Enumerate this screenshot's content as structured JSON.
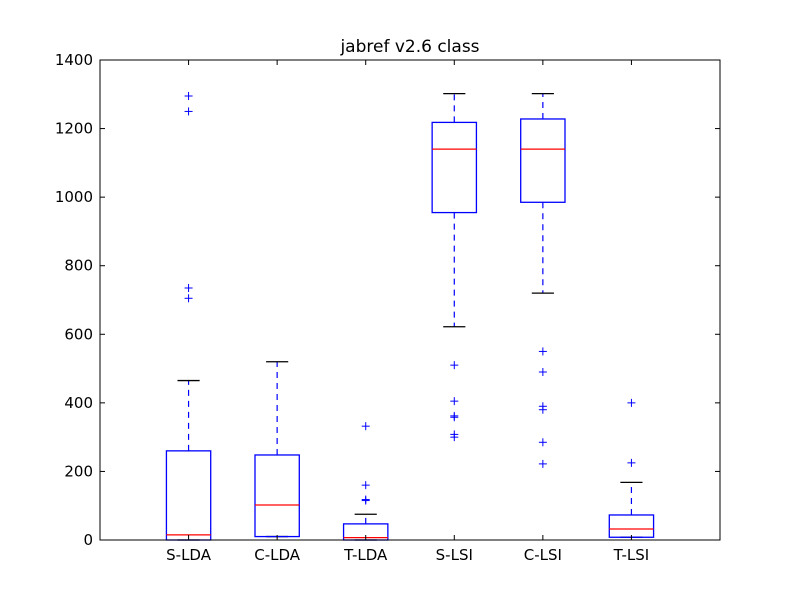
{
  "chart_data": {
    "type": "box",
    "title": "jabref v2.6 class",
    "xlabel": "",
    "ylabel": "",
    "ylim": [
      0,
      1400
    ],
    "yticks": [
      0,
      200,
      400,
      600,
      800,
      1000,
      1200,
      1400
    ],
    "grid": false,
    "categories": [
      "S-LDA",
      "C-LDA",
      "T-LDA",
      "S-LSI",
      "C-LSI",
      "T-LSI"
    ],
    "boxes": [
      {
        "label": "S-LDA",
        "whisker_low": 0,
        "q1": 0,
        "median": 15,
        "q3": 260,
        "whisker_high": 465,
        "outliers": [
          705,
          735,
          1250,
          1295
        ]
      },
      {
        "label": "C-LDA",
        "whisker_low": 10,
        "q1": 10,
        "median": 102,
        "q3": 248,
        "whisker_high": 520,
        "outliers": []
      },
      {
        "label": "T-LDA",
        "whisker_low": 0,
        "q1": 0,
        "median": 7,
        "q3": 47,
        "whisker_high": 75,
        "outliers": [
          115,
          118,
          160,
          332
        ]
      },
      {
        "label": "S-LSI",
        "whisker_low": 622,
        "q1": 955,
        "median": 1140,
        "q3": 1218,
        "whisker_high": 1302,
        "outliers": [
          300,
          308,
          358,
          362,
          405,
          510
        ]
      },
      {
        "label": "C-LSI",
        "whisker_low": 720,
        "q1": 985,
        "median": 1140,
        "q3": 1228,
        "whisker_high": 1302,
        "outliers": [
          222,
          285,
          380,
          390,
          490,
          550
        ]
      },
      {
        "label": "T-LSI",
        "whisker_low": 8,
        "q1": 8,
        "median": 32,
        "q3": 73,
        "whisker_high": 168,
        "outliers": [
          225,
          400
        ]
      }
    ],
    "colors": {
      "box": "#0000ff",
      "median": "#ff0000",
      "whisker_cap": "#000000",
      "outlier": "#0000ff"
    }
  }
}
